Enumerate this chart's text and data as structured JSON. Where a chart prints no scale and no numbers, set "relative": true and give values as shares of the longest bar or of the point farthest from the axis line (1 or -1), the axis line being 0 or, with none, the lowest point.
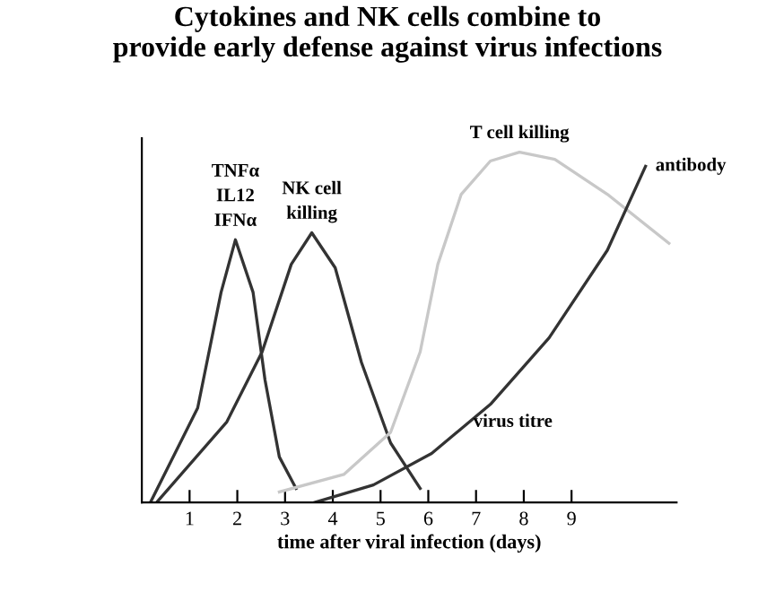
{
  "chart_data": {
    "type": "line",
    "title": "Cytokines and NK cells combine to\nprovide early defense against virus infections",
    "xlabel": "time after viral infection (days)",
    "relative": true,
    "xlim": [
      0,
      11.2
    ],
    "xticks": [
      1,
      2,
      3,
      4,
      5,
      6,
      7,
      8,
      9
    ],
    "grid": false,
    "legend": false,
    "marker": "none",
    "line_style": "solid",
    "series": [
      {
        "name": "TNFα\nIL12\nIFNα",
        "color": "#333333",
        "x": [
          0.18,
          1.17,
          1.66,
          1.96,
          2.33,
          2.58,
          2.88,
          3.23
        ],
        "values": [
          0,
          0.27,
          0.6,
          0.75,
          0.6,
          0.35,
          0.13,
          0.04
        ]
      },
      {
        "name": "NK cell\nkilling",
        "color": "#333333",
        "x": [
          0.31,
          1.78,
          2.52,
          3.13,
          3.56,
          4.05,
          4.6,
          5.21,
          5.83
        ],
        "values": [
          0,
          0.23,
          0.43,
          0.68,
          0.77,
          0.67,
          0.4,
          0.17,
          0.04
        ]
      },
      {
        "name": "T cell killing",
        "color": "#c8c8c8",
        "x": [
          2.88,
          4.23,
          5.21,
          5.83,
          6.2,
          6.69,
          7.3,
          7.91,
          8.65,
          9.75,
          11.04
        ],
        "values": [
          0.03,
          0.08,
          0.2,
          0.43,
          0.68,
          0.88,
          0.975,
          1.0,
          0.98,
          0.88,
          0.74
        ]
      },
      {
        "name": "antibody",
        "color": "#333333",
        "x": [
          3.62,
          4.85,
          6.07,
          7.3,
          8.53,
          9.75,
          10.55
        ],
        "values": [
          0,
          0.05,
          0.14,
          0.28,
          0.47,
          0.72,
          0.96
        ]
      }
    ],
    "annotations": [
      "virus titre"
    ]
  }
}
